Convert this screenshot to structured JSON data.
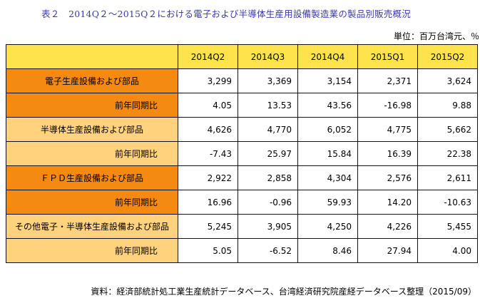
{
  "title": "表２　2014Q２～2015Q２における電子および半導体生産用設備製造業の製品別販売概況",
  "unit": "単位：百万台湾元、％",
  "table": {
    "columns": [
      "2014Q2",
      "2014Q3",
      "2014Q4",
      "2015Q1",
      "2015Q2"
    ],
    "rows": [
      {
        "label": "電子生産設備および部品",
        "values": [
          "3,299",
          "3,369",
          "3,154",
          "2,371",
          "3,624"
        ]
      },
      {
        "label": "前年同期比",
        "values": [
          "4.05",
          "13.53",
          "43.56",
          "-16.98",
          "9.88"
        ]
      },
      {
        "label": "半導体生産設備および部品",
        "values": [
          "4,626",
          "4,770",
          "6,052",
          "4,775",
          "5,662"
        ]
      },
      {
        "label": "前年同期比",
        "values": [
          "-7.43",
          "25.97",
          "15.84",
          "16.39",
          "22.38"
        ]
      },
      {
        "label": "ＦＰＤ生産設備および部品",
        "values": [
          "2,922",
          "2,858",
          "4,304",
          "2,576",
          "2,611"
        ]
      },
      {
        "label": "前年同期比",
        "values": [
          "16.96",
          "-0.96",
          "59.93",
          "14.20",
          "-10.63"
        ]
      },
      {
        "label": "その他電子・半導体生産設備および部品",
        "values": [
          "5,245",
          "3,905",
          "4,250",
          "4,226",
          "5,455"
        ]
      },
      {
        "label": "前年同期比",
        "values": [
          "5.05",
          "-6.52",
          "8.46",
          "27.94",
          "4.00"
        ]
      }
    ]
  },
  "source": "資料：経済部統計処工業生産統計データベース、台湾経済研究院産経データベース整理（2015/09）",
  "colors": {
    "header_fill": "#ffe34d",
    "label_fill_dark": "#f58a12",
    "label_fill_light": "#ffd27e",
    "title_text": "#3a3aa8"
  }
}
